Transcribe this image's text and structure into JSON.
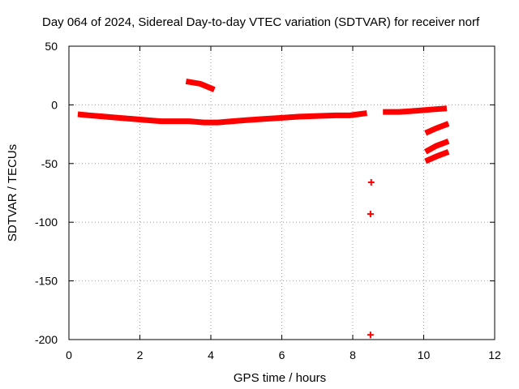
{
  "chart_data": {
    "type": "scatter",
    "title": "Day 064 of 2024, Sidereal Day-to-day VTEC variation (SDTVAR) for receiver norf",
    "xlabel": "GPS time / hours",
    "ylabel": "SDTVAR / TECUs",
    "xlim": [
      0,
      12
    ],
    "ylim": [
      -200,
      50
    ],
    "x_ticks": [
      "0",
      "2",
      "4",
      "6",
      "8",
      "10",
      "12"
    ],
    "y_ticks": [
      "50",
      "0",
      "-50",
      "-100",
      "-150",
      "-200"
    ],
    "grid": true,
    "legend": "none",
    "color": "#ff0000",
    "series": [
      {
        "x": [
          0.25,
          0.6,
          1.0,
          1.4,
          1.8,
          2.2,
          2.6,
          3.0,
          3.4,
          3.8,
          4.2,
          4.6,
          5.0,
          5.5,
          6.0,
          6.5,
          7.0,
          7.5,
          7.9,
          8.15,
          8.4
        ],
        "y": [
          -8,
          -9,
          -10,
          -11,
          -12,
          -13,
          -14,
          -14,
          -14,
          -15,
          -15,
          -14,
          -13,
          -12,
          -11,
          -10,
          -9.5,
          -9,
          -9,
          -8,
          -7
        ]
      },
      {
        "x": [
          3.3,
          3.7,
          4.1
        ],
        "y": [
          20,
          18,
          13
        ]
      },
      {
        "x": [
          8.85,
          9.3,
          9.8,
          10.2,
          10.65
        ],
        "y": [
          -6,
          -6,
          -5,
          -4,
          -3
        ]
      },
      {
        "x": [
          10.05,
          10.35,
          10.7
        ],
        "y": [
          -24,
          -20,
          -16
        ]
      },
      {
        "x": [
          10.05,
          10.35,
          10.7
        ],
        "y": [
          -40,
          -35,
          -31
        ]
      },
      {
        "x": [
          10.05,
          10.35,
          10.7
        ],
        "y": [
          -48,
          -44,
          -40
        ]
      },
      {
        "x": [
          8.52
        ],
        "y": [
          -66
        ]
      },
      {
        "x": [
          8.5
        ],
        "y": [
          -93
        ]
      },
      {
        "x": [
          8.5
        ],
        "y": [
          -196
        ]
      }
    ]
  }
}
